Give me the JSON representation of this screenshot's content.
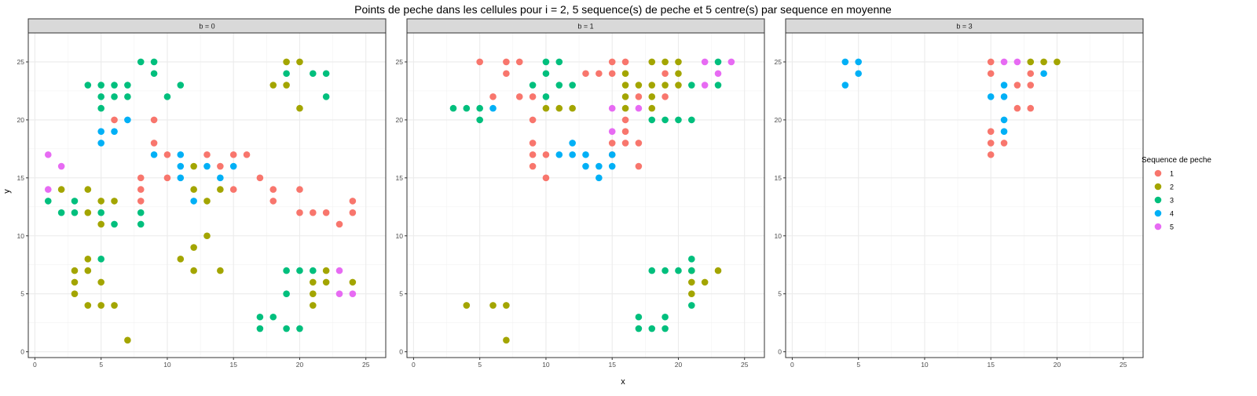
{
  "chart_data": {
    "type": "scatter",
    "title": "Points de peche dans les cellules pour i = 2, 5 sequence(s) de peche et 5 centre(s) par sequence en moyenne",
    "xlabel": "x",
    "ylabel": "y",
    "xlim": [
      -0.5,
      26.5
    ],
    "ylim": [
      -0.5,
      27.5
    ],
    "xticks": [
      0,
      5,
      10,
      15,
      20,
      25
    ],
    "yticks": [
      0,
      5,
      10,
      15,
      20,
      25
    ],
    "grid": true,
    "legend": {
      "title": "Sequence de peche",
      "placement": "right",
      "entries": [
        {
          "label": "1",
          "color": "#F8766D"
        },
        {
          "label": "2",
          "color": "#A3A500"
        },
        {
          "label": "3",
          "color": "#00BF7D"
        },
        {
          "label": "4",
          "color": "#00B0F6"
        },
        {
          "label": "5",
          "color": "#E76BF3"
        }
      ]
    },
    "panels": [
      {
        "label": "b = 0",
        "series": [
          {
            "name": "1",
            "points": [
              [
                6,
                20
              ],
              [
                9,
                20
              ],
              [
                9,
                18
              ],
              [
                8,
                15
              ],
              [
                8,
                14
              ],
              [
                8,
                13
              ],
              [
                10,
                17
              ],
              [
                10,
                15
              ],
              [
                13,
                17
              ],
              [
                14,
                16
              ],
              [
                15,
                17
              ],
              [
                16,
                17
              ],
              [
                17,
                15
              ],
              [
                18,
                14
              ],
              [
                18,
                13
              ],
              [
                15,
                14
              ],
              [
                20,
                14
              ],
              [
                20,
                12
              ],
              [
                21,
                12
              ],
              [
                22,
                12
              ],
              [
                23,
                11
              ],
              [
                24,
                13
              ],
              [
                24,
                12
              ]
            ]
          },
          {
            "name": "2",
            "points": [
              [
                2,
                14
              ],
              [
                4,
                14
              ],
              [
                4,
                12
              ],
              [
                5,
                13
              ],
              [
                5,
                11
              ],
              [
                6,
                13
              ],
              [
                12,
                16
              ],
              [
                12,
                14
              ],
              [
                12,
                9
              ],
              [
                13,
                13
              ],
              [
                13,
                10
              ],
              [
                14,
                14
              ],
              [
                11,
                8
              ],
              [
                12,
                7
              ],
              [
                14,
                7
              ],
              [
                3,
                7
              ],
              [
                3,
                6
              ],
              [
                3,
                5
              ],
              [
                4,
                8
              ],
              [
                4,
                7
              ],
              [
                4,
                4
              ],
              [
                5,
                6
              ],
              [
                5,
                4
              ],
              [
                6,
                4
              ],
              [
                7,
                1
              ],
              [
                18,
                23
              ],
              [
                19,
                25
              ],
              [
                19,
                23
              ],
              [
                20,
                25
              ],
              [
                20,
                21
              ],
              [
                21,
                6
              ],
              [
                21,
                5
              ],
              [
                21,
                4
              ],
              [
                22,
                7
              ],
              [
                22,
                6
              ],
              [
                24,
                6
              ]
            ]
          },
          {
            "name": "3",
            "points": [
              [
                1,
                13
              ],
              [
                2,
                12
              ],
              [
                3,
                13
              ],
              [
                3,
                12
              ],
              [
                4,
                23
              ],
              [
                5,
                23
              ],
              [
                5,
                22
              ],
              [
                5,
                21
              ],
              [
                5,
                12
              ],
              [
                5,
                8
              ],
              [
                6,
                23
              ],
              [
                6,
                22
              ],
              [
                6,
                11
              ],
              [
                7,
                23
              ],
              [
                7,
                22
              ],
              [
                8,
                25
              ],
              [
                8,
                12
              ],
              [
                8,
                11
              ],
              [
                9,
                25
              ],
              [
                9,
                24
              ],
              [
                10,
                22
              ],
              [
                11,
                23
              ],
              [
                19,
                24
              ],
              [
                19,
                7
              ],
              [
                19,
                5
              ],
              [
                20,
                7
              ],
              [
                21,
                24
              ],
              [
                21,
                7
              ],
              [
                22,
                24
              ],
              [
                22,
                22
              ],
              [
                17,
                3
              ],
              [
                17,
                2
              ],
              [
                18,
                3
              ],
              [
                19,
                2
              ],
              [
                20,
                2
              ]
            ]
          },
          {
            "name": "4",
            "points": [
              [
                5,
                19
              ],
              [
                5,
                18
              ],
              [
                6,
                19
              ],
              [
                7,
                20
              ],
              [
                9,
                17
              ],
              [
                11,
                17
              ],
              [
                11,
                16
              ],
              [
                11,
                15
              ],
              [
                12,
                13
              ],
              [
                13,
                16
              ],
              [
                14,
                15
              ],
              [
                15,
                16
              ]
            ]
          },
          {
            "name": "5",
            "points": [
              [
                1,
                17
              ],
              [
                1,
                14
              ],
              [
                2,
                16
              ],
              [
                23,
                7
              ],
              [
                23,
                5
              ],
              [
                24,
                5
              ]
            ]
          }
        ]
      },
      {
        "label": "b = 1",
        "series": [
          {
            "name": "1",
            "points": [
              [
                5,
                25
              ],
              [
                6,
                22
              ],
              [
                7,
                25
              ],
              [
                7,
                24
              ],
              [
                8,
                25
              ],
              [
                8,
                22
              ],
              [
                9,
                22
              ],
              [
                9,
                20
              ],
              [
                9,
                18
              ],
              [
                9,
                17
              ],
              [
                9,
                16
              ],
              [
                10,
                17
              ],
              [
                10,
                15
              ],
              [
                13,
                24
              ],
              [
                14,
                24
              ],
              [
                15,
                25
              ],
              [
                15,
                24
              ],
              [
                15,
                18
              ],
              [
                15,
                17
              ],
              [
                16,
                25
              ],
              [
                16,
                20
              ],
              [
                16,
                19
              ],
              [
                16,
                18
              ],
              [
                17,
                22
              ],
              [
                17,
                18
              ],
              [
                17,
                16
              ],
              [
                19,
                24
              ],
              [
                19,
                22
              ]
            ]
          },
          {
            "name": "2",
            "points": [
              [
                10,
                21
              ],
              [
                11,
                21
              ],
              [
                12,
                21
              ],
              [
                16,
                24
              ],
              [
                16,
                23
              ],
              [
                16,
                22
              ],
              [
                16,
                21
              ],
              [
                17,
                23
              ],
              [
                18,
                25
              ],
              [
                18,
                23
              ],
              [
                18,
                22
              ],
              [
                18,
                21
              ],
              [
                19,
                25
              ],
              [
                19,
                23
              ],
              [
                20,
                25
              ],
              [
                20,
                24
              ],
              [
                20,
                23
              ],
              [
                4,
                4
              ],
              [
                6,
                4
              ],
              [
                7,
                4
              ],
              [
                7,
                1
              ],
              [
                21,
                7
              ],
              [
                21,
                6
              ],
              [
                21,
                5
              ],
              [
                22,
                6
              ],
              [
                23,
                7
              ]
            ]
          },
          {
            "name": "3",
            "points": [
              [
                3,
                21
              ],
              [
                4,
                21
              ],
              [
                5,
                21
              ],
              [
                5,
                20
              ],
              [
                9,
                23
              ],
              [
                10,
                25
              ],
              [
                10,
                24
              ],
              [
                10,
                22
              ],
              [
                11,
                25
              ],
              [
                11,
                23
              ],
              [
                12,
                23
              ],
              [
                18,
                20
              ],
              [
                19,
                20
              ],
              [
                20,
                20
              ],
              [
                21,
                23
              ],
              [
                21,
                20
              ],
              [
                23,
                25
              ],
              [
                23,
                23
              ],
              [
                18,
                7
              ],
              [
                19,
                7
              ],
              [
                20,
                7
              ],
              [
                21,
                8
              ],
              [
                21,
                7
              ],
              [
                21,
                4
              ],
              [
                17,
                3
              ],
              [
                17,
                2
              ],
              [
                18,
                2
              ],
              [
                19,
                3
              ],
              [
                19,
                2
              ]
            ]
          },
          {
            "name": "4",
            "points": [
              [
                6,
                21
              ],
              [
                11,
                17
              ],
              [
                12,
                18
              ],
              [
                12,
                17
              ],
              [
                13,
                17
              ],
              [
                13,
                16
              ],
              [
                14,
                16
              ],
              [
                14,
                15
              ],
              [
                15,
                17
              ],
              [
                15,
                16
              ]
            ]
          },
          {
            "name": "5",
            "points": [
              [
                15,
                21
              ],
              [
                15,
                19
              ],
              [
                17,
                21
              ],
              [
                22,
                25
              ],
              [
                22,
                23
              ],
              [
                23,
                24
              ],
              [
                24,
                25
              ]
            ]
          }
        ]
      },
      {
        "label": "b = 3",
        "series": [
          {
            "name": "1",
            "points": [
              [
                15,
                25
              ],
              [
                15,
                24
              ],
              [
                15,
                19
              ],
              [
                15,
                18
              ],
              [
                15,
                17
              ],
              [
                16,
                18
              ],
              [
                17,
                23
              ],
              [
                17,
                21
              ],
              [
                18,
                24
              ],
              [
                18,
                23
              ],
              [
                18,
                21
              ]
            ]
          },
          {
            "name": "2",
            "points": [
              [
                18,
                25
              ],
              [
                19,
                25
              ],
              [
                20,
                25
              ]
            ]
          },
          {
            "name": "3",
            "points": []
          },
          {
            "name": "4",
            "points": [
              [
                4,
                25
              ],
              [
                4,
                23
              ],
              [
                5,
                25
              ],
              [
                5,
                24
              ],
              [
                15,
                22
              ],
              [
                16,
                23
              ],
              [
                16,
                22
              ],
              [
                16,
                20
              ],
              [
                16,
                19
              ],
              [
                19,
                24
              ]
            ]
          },
          {
            "name": "5",
            "points": [
              [
                16,
                25
              ],
              [
                17,
                25
              ]
            ]
          }
        ]
      }
    ]
  }
}
